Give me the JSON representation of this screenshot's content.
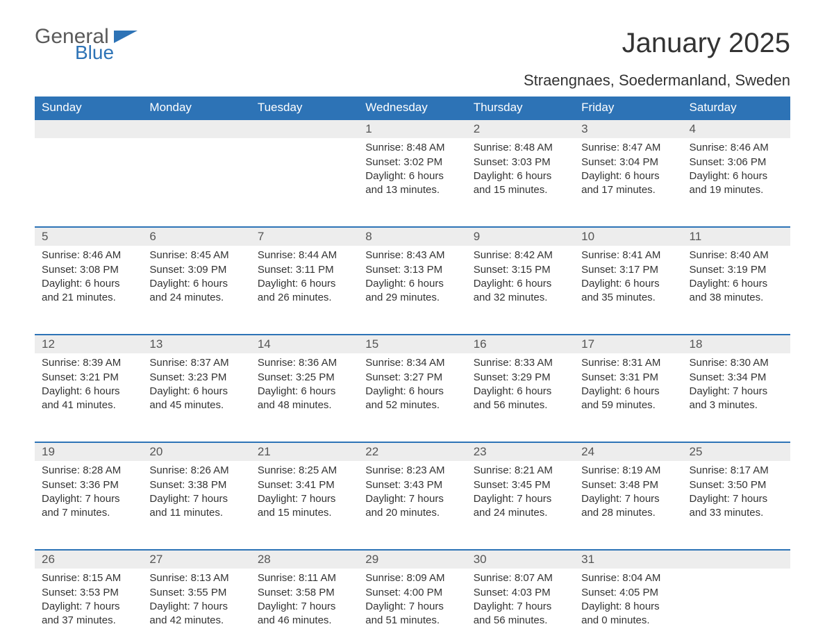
{
  "logo": {
    "line1": "General",
    "line2": "Blue",
    "color_general": "#5a5a5a",
    "color_blue": "#2d73b6"
  },
  "title": "January 2025",
  "location": "Straengnaes, Soedermanland, Sweden",
  "colors": {
    "header_bg": "#2d73b6",
    "header_text": "#ffffff",
    "daynum_bg": "#ededed",
    "text": "#333333",
    "row_border": "#2d73b6",
    "page_bg": "#ffffff"
  },
  "typography": {
    "title_fontsize": 40,
    "location_fontsize": 22,
    "weekday_fontsize": 17,
    "daynum_fontsize": 17,
    "body_fontsize": 15
  },
  "weekdays": [
    "Sunday",
    "Monday",
    "Tuesday",
    "Wednesday",
    "Thursday",
    "Friday",
    "Saturday"
  ],
  "weeks": [
    [
      null,
      null,
      null,
      {
        "n": "1",
        "sunrise": "Sunrise: 8:48 AM",
        "sunset": "Sunset: 3:02 PM",
        "day1": "Daylight: 6 hours",
        "day2": "and 13 minutes."
      },
      {
        "n": "2",
        "sunrise": "Sunrise: 8:48 AM",
        "sunset": "Sunset: 3:03 PM",
        "day1": "Daylight: 6 hours",
        "day2": "and 15 minutes."
      },
      {
        "n": "3",
        "sunrise": "Sunrise: 8:47 AM",
        "sunset": "Sunset: 3:04 PM",
        "day1": "Daylight: 6 hours",
        "day2": "and 17 minutes."
      },
      {
        "n": "4",
        "sunrise": "Sunrise: 8:46 AM",
        "sunset": "Sunset: 3:06 PM",
        "day1": "Daylight: 6 hours",
        "day2": "and 19 minutes."
      }
    ],
    [
      {
        "n": "5",
        "sunrise": "Sunrise: 8:46 AM",
        "sunset": "Sunset: 3:08 PM",
        "day1": "Daylight: 6 hours",
        "day2": "and 21 minutes."
      },
      {
        "n": "6",
        "sunrise": "Sunrise: 8:45 AM",
        "sunset": "Sunset: 3:09 PM",
        "day1": "Daylight: 6 hours",
        "day2": "and 24 minutes."
      },
      {
        "n": "7",
        "sunrise": "Sunrise: 8:44 AM",
        "sunset": "Sunset: 3:11 PM",
        "day1": "Daylight: 6 hours",
        "day2": "and 26 minutes."
      },
      {
        "n": "8",
        "sunrise": "Sunrise: 8:43 AM",
        "sunset": "Sunset: 3:13 PM",
        "day1": "Daylight: 6 hours",
        "day2": "and 29 minutes."
      },
      {
        "n": "9",
        "sunrise": "Sunrise: 8:42 AM",
        "sunset": "Sunset: 3:15 PM",
        "day1": "Daylight: 6 hours",
        "day2": "and 32 minutes."
      },
      {
        "n": "10",
        "sunrise": "Sunrise: 8:41 AM",
        "sunset": "Sunset: 3:17 PM",
        "day1": "Daylight: 6 hours",
        "day2": "and 35 minutes."
      },
      {
        "n": "11",
        "sunrise": "Sunrise: 8:40 AM",
        "sunset": "Sunset: 3:19 PM",
        "day1": "Daylight: 6 hours",
        "day2": "and 38 minutes."
      }
    ],
    [
      {
        "n": "12",
        "sunrise": "Sunrise: 8:39 AM",
        "sunset": "Sunset: 3:21 PM",
        "day1": "Daylight: 6 hours",
        "day2": "and 41 minutes."
      },
      {
        "n": "13",
        "sunrise": "Sunrise: 8:37 AM",
        "sunset": "Sunset: 3:23 PM",
        "day1": "Daylight: 6 hours",
        "day2": "and 45 minutes."
      },
      {
        "n": "14",
        "sunrise": "Sunrise: 8:36 AM",
        "sunset": "Sunset: 3:25 PM",
        "day1": "Daylight: 6 hours",
        "day2": "and 48 minutes."
      },
      {
        "n": "15",
        "sunrise": "Sunrise: 8:34 AM",
        "sunset": "Sunset: 3:27 PM",
        "day1": "Daylight: 6 hours",
        "day2": "and 52 minutes."
      },
      {
        "n": "16",
        "sunrise": "Sunrise: 8:33 AM",
        "sunset": "Sunset: 3:29 PM",
        "day1": "Daylight: 6 hours",
        "day2": "and 56 minutes."
      },
      {
        "n": "17",
        "sunrise": "Sunrise: 8:31 AM",
        "sunset": "Sunset: 3:31 PM",
        "day1": "Daylight: 6 hours",
        "day2": "and 59 minutes."
      },
      {
        "n": "18",
        "sunrise": "Sunrise: 8:30 AM",
        "sunset": "Sunset: 3:34 PM",
        "day1": "Daylight: 7 hours",
        "day2": "and 3 minutes."
      }
    ],
    [
      {
        "n": "19",
        "sunrise": "Sunrise: 8:28 AM",
        "sunset": "Sunset: 3:36 PM",
        "day1": "Daylight: 7 hours",
        "day2": "and 7 minutes."
      },
      {
        "n": "20",
        "sunrise": "Sunrise: 8:26 AM",
        "sunset": "Sunset: 3:38 PM",
        "day1": "Daylight: 7 hours",
        "day2": "and 11 minutes."
      },
      {
        "n": "21",
        "sunrise": "Sunrise: 8:25 AM",
        "sunset": "Sunset: 3:41 PM",
        "day1": "Daylight: 7 hours",
        "day2": "and 15 minutes."
      },
      {
        "n": "22",
        "sunrise": "Sunrise: 8:23 AM",
        "sunset": "Sunset: 3:43 PM",
        "day1": "Daylight: 7 hours",
        "day2": "and 20 minutes."
      },
      {
        "n": "23",
        "sunrise": "Sunrise: 8:21 AM",
        "sunset": "Sunset: 3:45 PM",
        "day1": "Daylight: 7 hours",
        "day2": "and 24 minutes."
      },
      {
        "n": "24",
        "sunrise": "Sunrise: 8:19 AM",
        "sunset": "Sunset: 3:48 PM",
        "day1": "Daylight: 7 hours",
        "day2": "and 28 minutes."
      },
      {
        "n": "25",
        "sunrise": "Sunrise: 8:17 AM",
        "sunset": "Sunset: 3:50 PM",
        "day1": "Daylight: 7 hours",
        "day2": "and 33 minutes."
      }
    ],
    [
      {
        "n": "26",
        "sunrise": "Sunrise: 8:15 AM",
        "sunset": "Sunset: 3:53 PM",
        "day1": "Daylight: 7 hours",
        "day2": "and 37 minutes."
      },
      {
        "n": "27",
        "sunrise": "Sunrise: 8:13 AM",
        "sunset": "Sunset: 3:55 PM",
        "day1": "Daylight: 7 hours",
        "day2": "and 42 minutes."
      },
      {
        "n": "28",
        "sunrise": "Sunrise: 8:11 AM",
        "sunset": "Sunset: 3:58 PM",
        "day1": "Daylight: 7 hours",
        "day2": "and 46 minutes."
      },
      {
        "n": "29",
        "sunrise": "Sunrise: 8:09 AM",
        "sunset": "Sunset: 4:00 PM",
        "day1": "Daylight: 7 hours",
        "day2": "and 51 minutes."
      },
      {
        "n": "30",
        "sunrise": "Sunrise: 8:07 AM",
        "sunset": "Sunset: 4:03 PM",
        "day1": "Daylight: 7 hours",
        "day2": "and 56 minutes."
      },
      {
        "n": "31",
        "sunrise": "Sunrise: 8:04 AM",
        "sunset": "Sunset: 4:05 PM",
        "day1": "Daylight: 8 hours",
        "day2": "and 0 minutes."
      },
      null
    ]
  ]
}
